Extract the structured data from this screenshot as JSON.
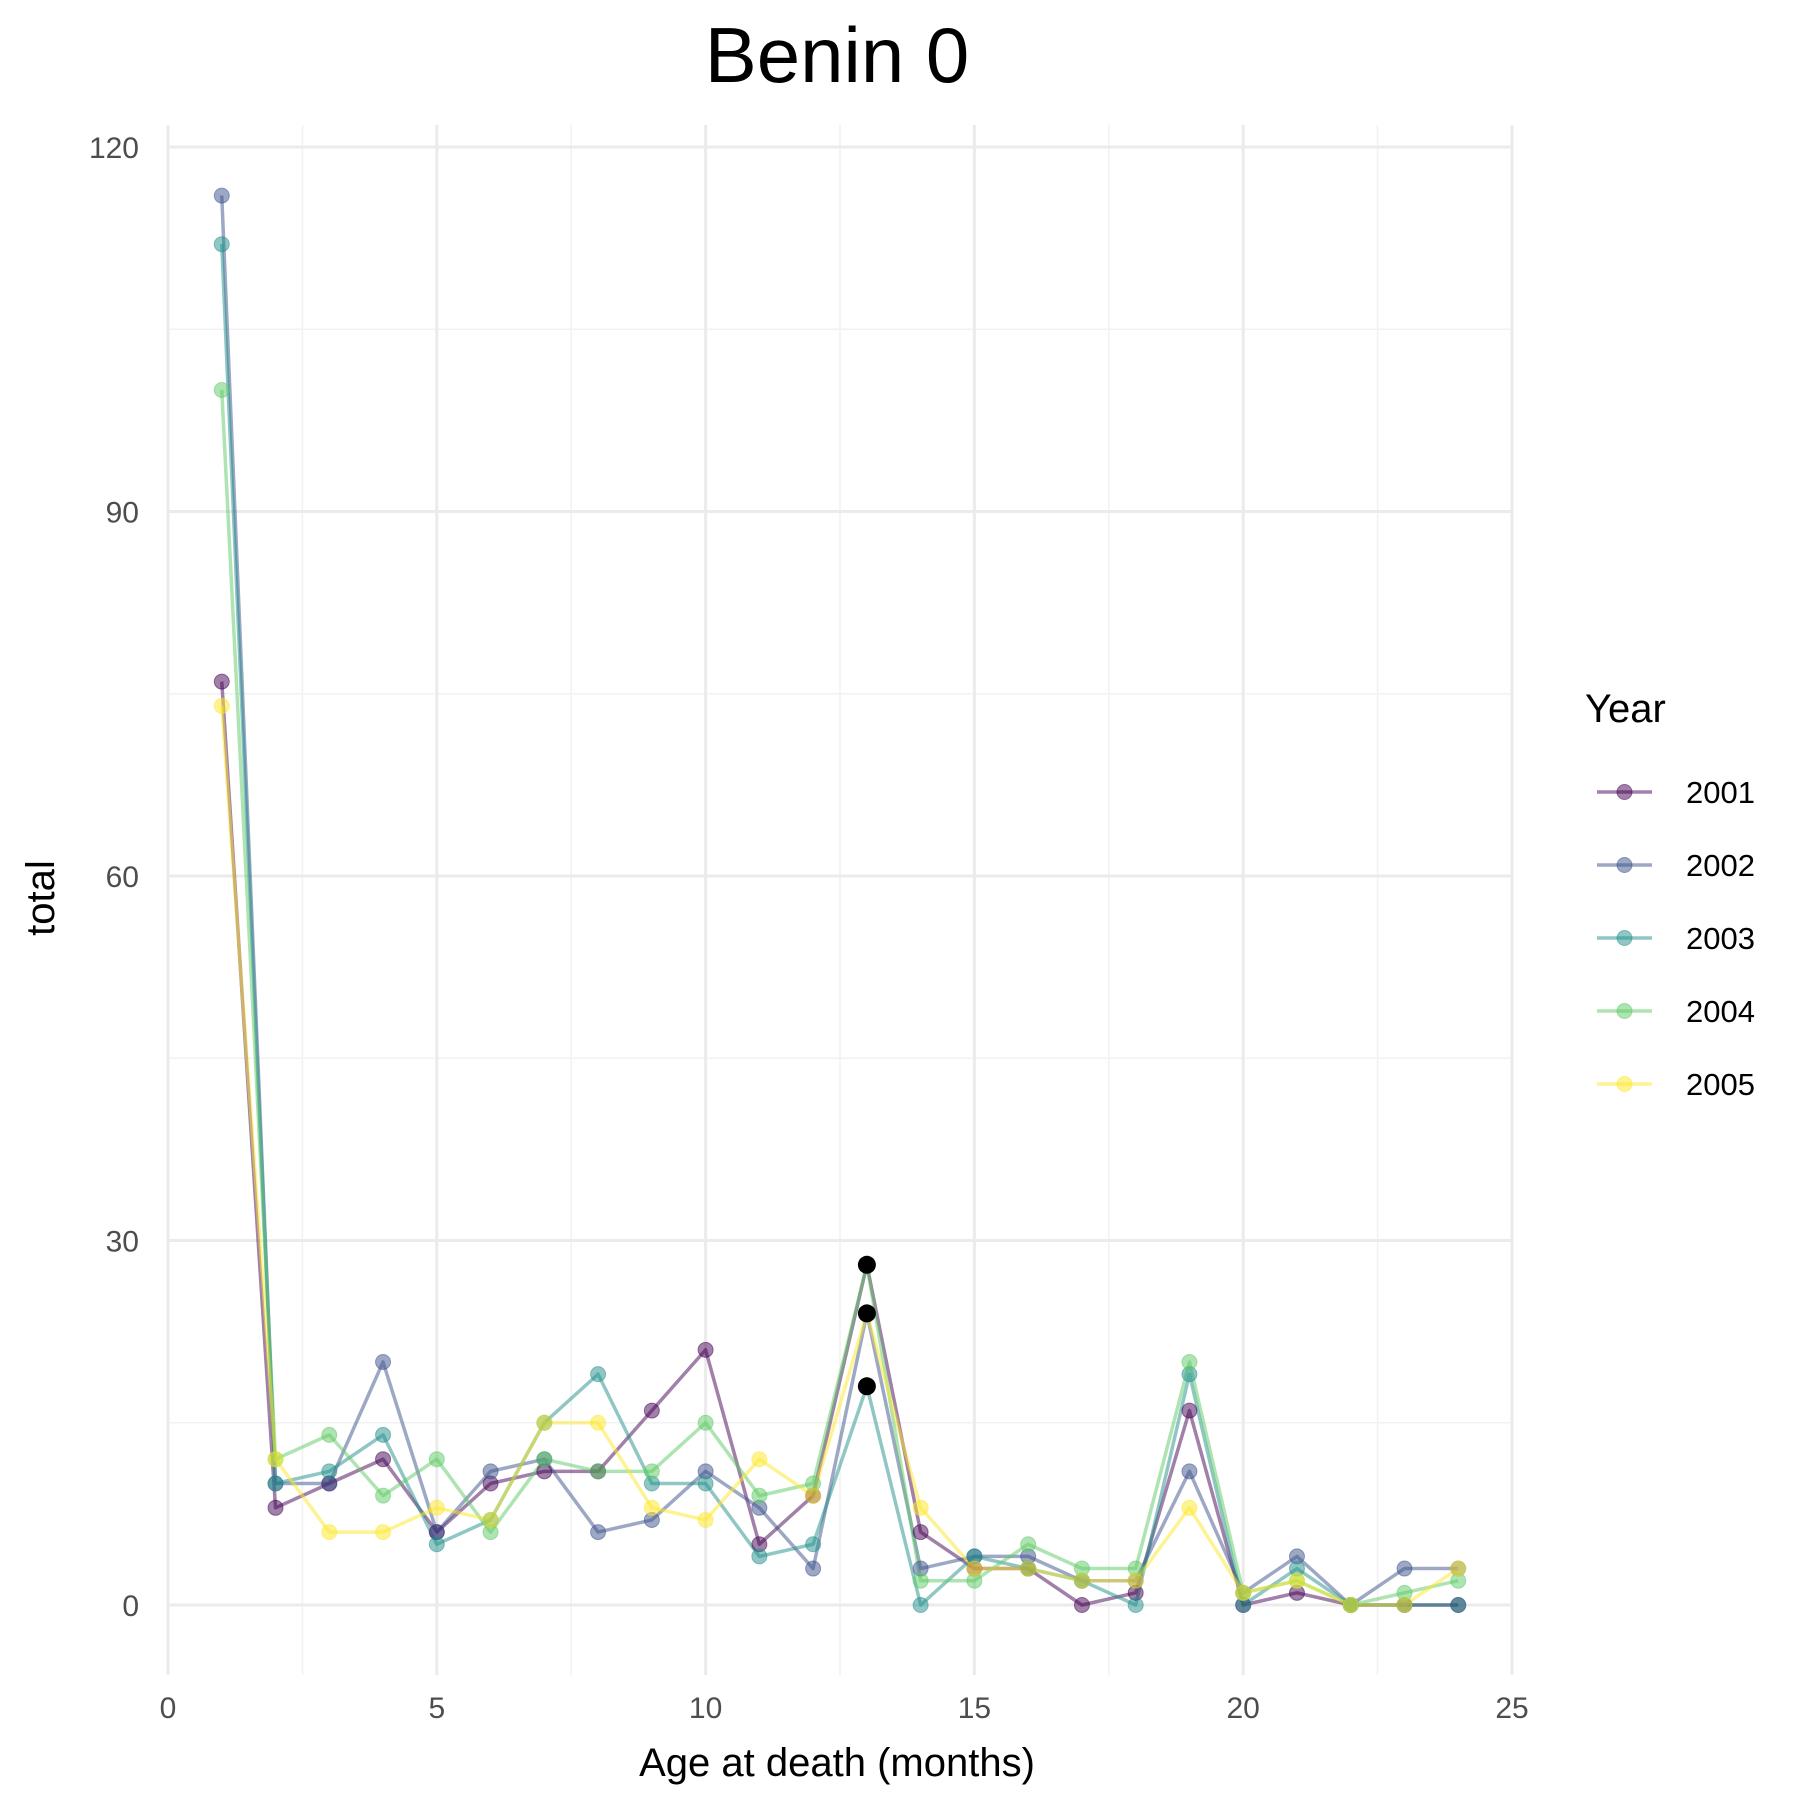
{
  "chart_data": {
    "type": "line",
    "title": "Benin 0",
    "xlabel": "Age at death (months)",
    "ylabel": "total",
    "xlim": [
      0,
      25
    ],
    "ylim": [
      -5,
      122
    ],
    "x_ticks": [
      0,
      5,
      10,
      15,
      20,
      25
    ],
    "y_ticks": [
      0,
      30,
      60,
      90,
      120
    ],
    "grid": true,
    "legend": {
      "title": "Year",
      "position": "right"
    },
    "x": [
      1,
      2,
      3,
      4,
      5,
      6,
      7,
      8,
      9,
      10,
      11,
      12,
      13,
      14,
      15,
      16,
      17,
      18,
      19,
      20,
      21,
      22,
      23,
      24
    ],
    "series": [
      {
        "name": "2001",
        "color": "#440154",
        "values": [
          76,
          8,
          10,
          12,
          6,
          10,
          11,
          11,
          16,
          21,
          5,
          9,
          28,
          6,
          3,
          3,
          0,
          1,
          16,
          0,
          1,
          0,
          0,
          0
        ]
      },
      {
        "name": "2002",
        "color": "#3b528b",
        "values": [
          116,
          10,
          10,
          20,
          6,
          11,
          12,
          6,
          7,
          11,
          8,
          3,
          24,
          3,
          4,
          4,
          2,
          2,
          11,
          1,
          4,
          0,
          3,
          3
        ]
      },
      {
        "name": "2003",
        "color": "#21908c",
        "values": [
          112,
          10,
          11,
          14,
          5,
          7,
          15,
          19,
          10,
          10,
          4,
          5,
          18,
          0,
          4,
          3,
          2,
          0,
          19,
          0,
          3,
          0,
          0,
          0
        ]
      },
      {
        "name": "2004",
        "color": "#5dc963",
        "values": [
          100,
          12,
          14,
          9,
          12,
          6,
          12,
          11,
          11,
          15,
          9,
          10,
          28,
          2,
          2,
          5,
          3,
          3,
          20,
          1,
          2,
          0,
          1,
          2
        ]
      },
      {
        "name": "2005",
        "color": "#fde725",
        "values": [
          74,
          12,
          6,
          6,
          8,
          7,
          15,
          15,
          8,
          7,
          12,
          9,
          24,
          8,
          3,
          3,
          2,
          2,
          8,
          1,
          2,
          0,
          0,
          3
        ]
      }
    ],
    "highlight_points": [
      {
        "x": 13,
        "y": 28
      },
      {
        "x": 13,
        "y": 24
      },
      {
        "x": 13,
        "y": 18
      }
    ]
  }
}
